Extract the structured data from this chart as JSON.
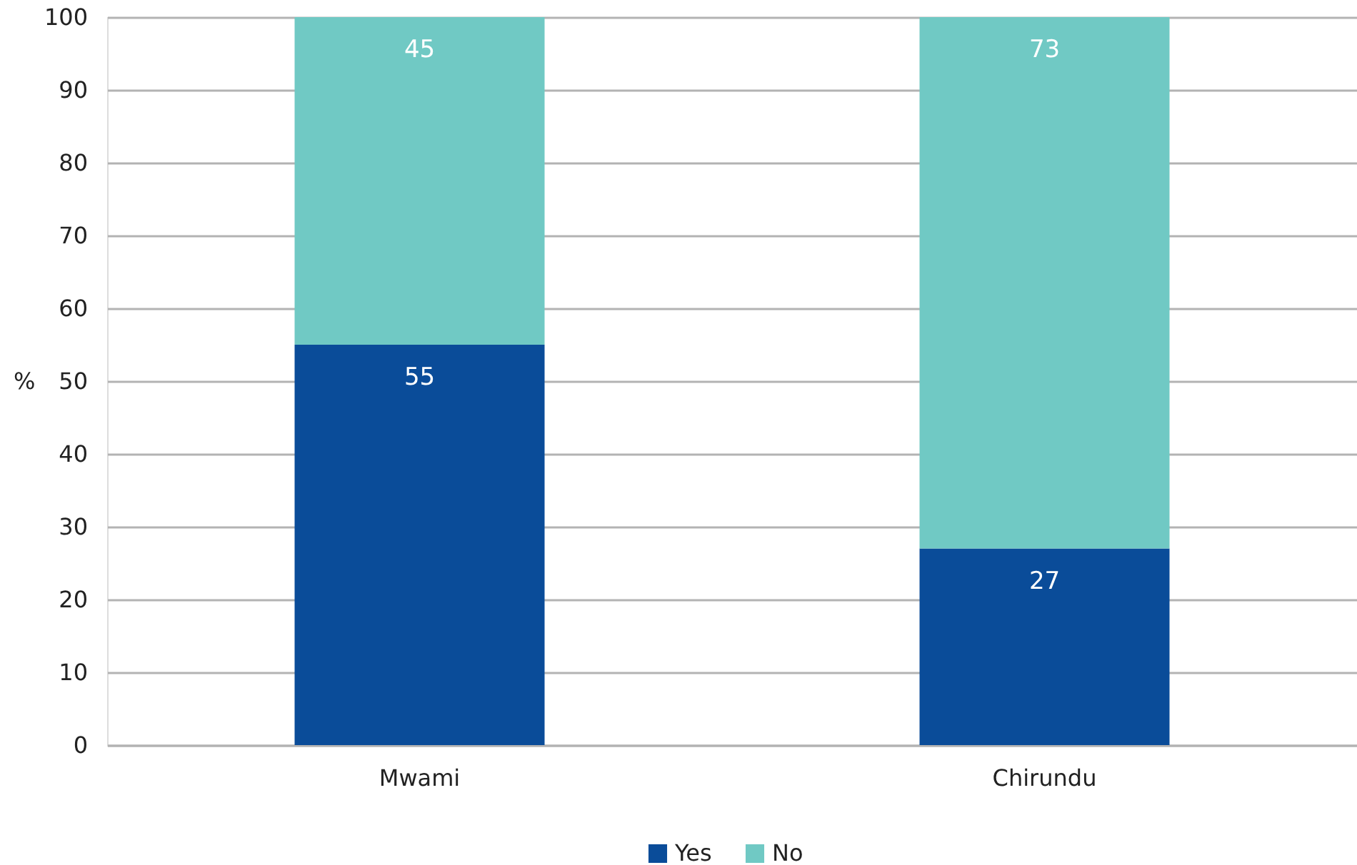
{
  "chart_data": {
    "type": "bar",
    "ylabel": "%",
    "categories": [
      "Mwami",
      "Chirundu"
    ],
    "series": [
      {
        "name": "Yes",
        "color": "#0a4c99",
        "values": [
          55,
          27
        ]
      },
      {
        "name": "No",
        "color": "#70c9c4",
        "values": [
          45,
          73
        ]
      }
    ],
    "stacked": true,
    "ylim": [
      0,
      100
    ],
    "yticks": [
      0,
      10,
      20,
      30,
      40,
      50,
      60,
      70,
      80,
      90,
      100
    ],
    "grid": "y",
    "legend": "bottom",
    "data_labels": true
  }
}
